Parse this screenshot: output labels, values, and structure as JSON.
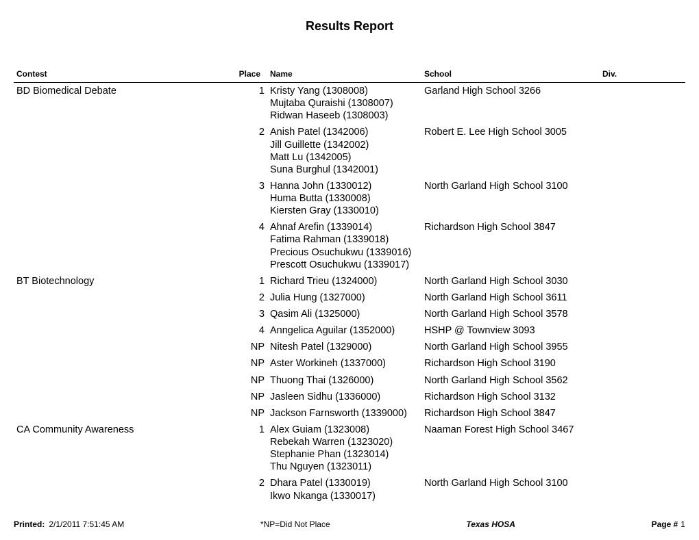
{
  "title": "Results Report",
  "columns": {
    "contest": "Contest",
    "place": "Place",
    "name": "Name",
    "school": "School",
    "div": "Div."
  },
  "rows": [
    {
      "contest": "BD Biomedical Debate",
      "place": "1",
      "names": [
        "Kristy Yang (1308008)",
        "Mujtaba Quraishi (1308007)",
        "Ridwan Haseeb (1308003)"
      ],
      "school": "Garland High School 3266",
      "div": ""
    },
    {
      "contest": "",
      "place": "2",
      "names": [
        "Anish Patel (1342006)",
        "Jill Guillette (1342002)",
        "Matt Lu (1342005)",
        "Suna Burghul (1342001)"
      ],
      "school": "Robert E. Lee High School 3005",
      "div": ""
    },
    {
      "contest": "",
      "place": "3",
      "names": [
        "Hanna John (1330012)",
        "Huma Butta (1330008)",
        "Kiersten Gray (1330010)"
      ],
      "school": "North Garland High School 3100",
      "div": ""
    },
    {
      "contest": "",
      "place": "4",
      "names": [
        "Ahnaf Arefin (1339014)",
        "Fatima Rahman (1339018)",
        "Precious Osuchukwu (1339016)",
        "Prescott Osuchukwu (1339017)"
      ],
      "school": "Richardson High School 3847",
      "div": ""
    },
    {
      "contest": "BT Biotechnology",
      "place": "1",
      "names": [
        "Richard Trieu (1324000)"
      ],
      "school": "North Garland High School 3030",
      "div": ""
    },
    {
      "contest": "",
      "place": "2",
      "names": [
        "Julia Hung (1327000)"
      ],
      "school": "North Garland High School 3611",
      "div": ""
    },
    {
      "contest": "",
      "place": "3",
      "names": [
        "Qasim Ali (1325000)"
      ],
      "school": "North Garland High School 3578",
      "div": ""
    },
    {
      "contest": "",
      "place": "4",
      "names": [
        "Anngelica Aguilar (1352000)"
      ],
      "school": "HSHP @ Townview 3093",
      "div": ""
    },
    {
      "contest": "",
      "place": "NP",
      "names": [
        "Nitesh Patel (1329000)"
      ],
      "school": "North Garland High School 3955",
      "div": ""
    },
    {
      "contest": "",
      "place": "NP",
      "names": [
        "Aster Workineh (1337000)"
      ],
      "school": "Richardson High School 3190",
      "div": ""
    },
    {
      "contest": "",
      "place": "NP",
      "names": [
        "Thuong Thai (1326000)"
      ],
      "school": "North Garland High School 3562",
      "div": ""
    },
    {
      "contest": "",
      "place": "NP",
      "names": [
        "Jasleen Sidhu (1336000)"
      ],
      "school": "Richardson High School 3132",
      "div": ""
    },
    {
      "contest": "",
      "place": "NP",
      "names": [
        "Jackson Farnsworth (1339000)"
      ],
      "school": "Richardson High School 3847",
      "div": ""
    },
    {
      "contest": "CA Community Awareness",
      "place": "1",
      "names": [
        "Alex Guiam (1323008)",
        "Rebekah Warren (1323020)",
        "Stephanie Phan (1323014)",
        "Thu Nguyen (1323011)"
      ],
      "school": "Naaman Forest High School 3467",
      "div": ""
    },
    {
      "contest": "",
      "place": "2",
      "names": [
        "Dhara Patel (1330019)",
        "Ikwo Nkanga (1330017)"
      ],
      "school": "North Garland High School 3100",
      "div": ""
    }
  ],
  "footer": {
    "printed_label": "Printed:",
    "printed_value": "2/1/2011 7:51:45 AM",
    "np_note": "*NP=Did Not Place",
    "org": "Texas HOSA",
    "page_label": "Page #",
    "page_number": "1"
  }
}
